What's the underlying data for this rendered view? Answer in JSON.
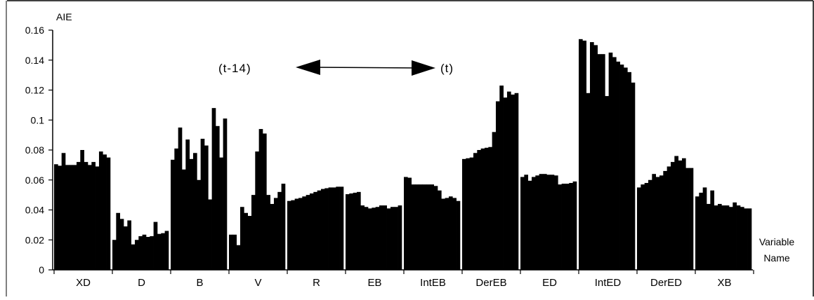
{
  "chart_data": {
    "type": "bar",
    "ylabel": "AIE",
    "xlabel": "Variable Name",
    "xlabel_lines": [
      "Variable",
      "Name"
    ],
    "ylim": [
      0,
      0.16
    ],
    "yticks": [
      {
        "value": 0,
        "label": "0"
      },
      {
        "value": 0.02,
        "label": "0.02"
      },
      {
        "value": 0.04,
        "label": "0.04"
      },
      {
        "value": 0.06,
        "label": "0.06"
      },
      {
        "value": 0.08,
        "label": "0.08"
      },
      {
        "value": 0.1,
        "label": "0.1"
      },
      {
        "value": 0.12,
        "label": "0.12"
      },
      {
        "value": 0.14,
        "label": "0.14"
      },
      {
        "value": 0.16,
        "label": "0.16"
      }
    ],
    "bar_color": "#000000",
    "lags_per_group": 15,
    "annotations": {
      "left": "(t-14)",
      "right": "(t)"
    },
    "groups": [
      {
        "name": "XD",
        "values": [
          0.0705,
          0.0695,
          0.078,
          0.07,
          0.07,
          0.07,
          0.072,
          0.08,
          0.072,
          0.07,
          0.072,
          0.069,
          0.079,
          0.077,
          0.075
        ]
      },
      {
        "name": "D",
        "values": [
          0.02,
          0.038,
          0.034,
          0.029,
          0.033,
          0.017,
          0.02,
          0.0225,
          0.0235,
          0.022,
          0.0225,
          0.032,
          0.024,
          0.0245,
          0.026
        ]
      },
      {
        "name": "B",
        "values": [
          0.0735,
          0.081,
          0.095,
          0.067,
          0.087,
          0.074,
          0.078,
          0.06,
          0.0875,
          0.083,
          0.047,
          0.108,
          0.096,
          0.075,
          0.101
        ]
      },
      {
        "name": "V",
        "values": [
          0.0235,
          0.0235,
          0.0165,
          0.042,
          0.038,
          0.036,
          0.05,
          0.079,
          0.094,
          0.091,
          0.05,
          0.044,
          0.048,
          0.052,
          0.0575
        ]
      },
      {
        "name": "R",
        "values": [
          0.046,
          0.0465,
          0.0475,
          0.048,
          0.049,
          0.05,
          0.051,
          0.052,
          0.053,
          0.054,
          0.0545,
          0.055,
          0.055,
          0.0555,
          0.0555
        ]
      },
      {
        "name": "EB",
        "values": [
          0.0505,
          0.051,
          0.0515,
          0.052,
          0.043,
          0.042,
          0.041,
          0.0415,
          0.042,
          0.043,
          0.043,
          0.041,
          0.042,
          0.042,
          0.043
        ]
      },
      {
        "name": "IntEB",
        "values": [
          0.062,
          0.0615,
          0.057,
          0.057,
          0.057,
          0.057,
          0.057,
          0.057,
          0.056,
          0.053,
          0.0475,
          0.048,
          0.049,
          0.048,
          0.046
        ]
      },
      {
        "name": "DerEB",
        "values": [
          0.074,
          0.0745,
          0.075,
          0.078,
          0.08,
          0.081,
          0.0815,
          0.082,
          0.092,
          0.1125,
          0.123,
          0.115,
          0.119,
          0.117,
          0.118
        ]
      },
      {
        "name": "ED",
        "values": [
          0.062,
          0.0635,
          0.0595,
          0.062,
          0.063,
          0.064,
          0.064,
          0.0635,
          0.0635,
          0.063,
          0.057,
          0.0575,
          0.0575,
          0.058,
          0.059
        ]
      },
      {
        "name": "IntED",
        "values": [
          0.154,
          0.153,
          0.118,
          0.152,
          0.15,
          0.144,
          0.144,
          0.116,
          0.145,
          0.142,
          0.139,
          0.137,
          0.135,
          0.132,
          0.125
        ]
      },
      {
        "name": "DerED",
        "values": [
          0.055,
          0.057,
          0.058,
          0.06,
          0.064,
          0.062,
          0.063,
          0.066,
          0.069,
          0.072,
          0.076,
          0.073,
          0.0745,
          0.068,
          0.068
        ]
      },
      {
        "name": "XB",
        "values": [
          0.049,
          0.0515,
          0.055,
          0.044,
          0.053,
          0.043,
          0.044,
          0.043,
          0.043,
          0.042,
          0.045,
          0.043,
          0.042,
          0.041,
          0.041
        ]
      }
    ]
  }
}
